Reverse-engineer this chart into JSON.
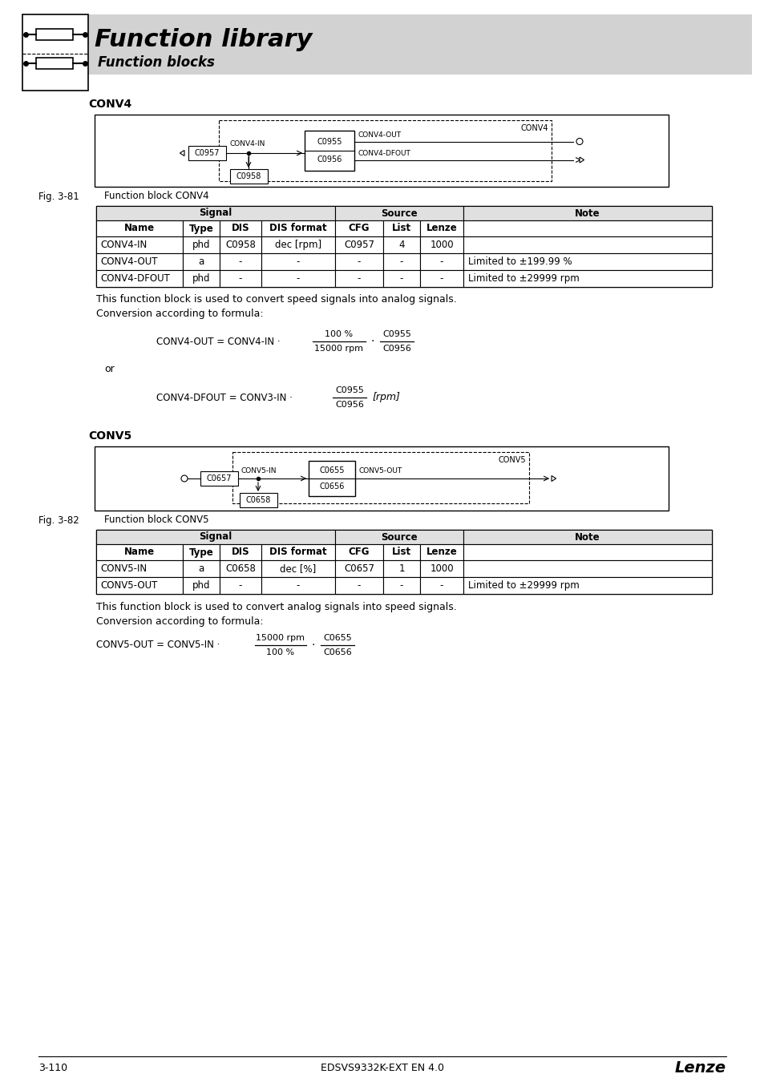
{
  "title": "Function library",
  "subtitle": "Function blocks",
  "bg_color": "#ffffff",
  "header_bg": "#d0d0d0",
  "page_number": "3-110",
  "doc_id": "EDSVS9332K-EXT EN 4.0",
  "brand": "Lenze",
  "conv4": {
    "title": "CONV4",
    "fig_label": "Fig. 3-81",
    "fig_caption": "Function block CONV4",
    "rows": [
      [
        "CONV4-IN",
        "phd",
        "C0958",
        "dec [rpm]",
        "C0957",
        "4",
        "1000",
        ""
      ],
      [
        "CONV4-OUT",
        "a",
        "-",
        "-",
        "-",
        "-",
        "-",
        "Limited to ±199.99 %"
      ],
      [
        "CONV4-DFOUT",
        "phd",
        "-",
        "-",
        "-",
        "-",
        "-",
        "Limited to ±29999 rpm"
      ]
    ],
    "desc1": "This function block is used to convert speed signals into analog signals.",
    "desc2": "Conversion according to formula:"
  },
  "conv5": {
    "title": "CONV5",
    "fig_label": "Fig. 3-82",
    "fig_caption": "Function block CONV5",
    "rows": [
      [
        "CONV5-IN",
        "a",
        "C0658",
        "dec [%]",
        "C0657",
        "1",
        "1000",
        ""
      ],
      [
        "CONV5-OUT",
        "phd",
        "-",
        "-",
        "-",
        "-",
        "-",
        "Limited to ±29999 rpm"
      ]
    ],
    "desc1": "This function block is used to convert analog signals into speed signals.",
    "desc2": "Conversion according to formula:"
  }
}
